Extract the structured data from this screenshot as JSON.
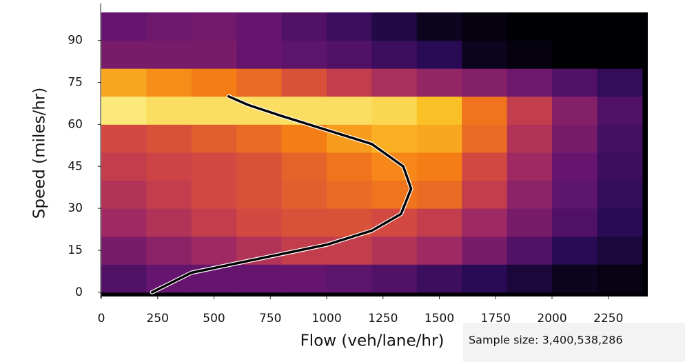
{
  "chart_data": {
    "type": "heatmap",
    "xlabel": "Flow (veh/lane/hr)",
    "ylabel": "Speed (miles/hr)",
    "annotation": "Sample size: 3,400,538,286",
    "xlim": [
      0,
      2425
    ],
    "ylim": [
      -1.5,
      100
    ],
    "xticks": [
      0,
      250,
      500,
      750,
      1000,
      1250,
      1500,
      1750,
      2000,
      2250
    ],
    "yticks": [
      0,
      15,
      30,
      45,
      60,
      75,
      90
    ],
    "xbins": [
      0,
      200,
      400,
      600,
      800,
      1000,
      1200,
      1400,
      1600,
      1800,
      2000,
      2200,
      2400
    ],
    "ybins": [
      0,
      10,
      20,
      30,
      40,
      50,
      60,
      70,
      80,
      90,
      100
    ],
    "z": [
      [
        0.25,
        0.3,
        0.3,
        0.3,
        0.3,
        0.28,
        0.25,
        0.2,
        0.15,
        0.1,
        0.05,
        0.03
      ],
      [
        0.35,
        0.4,
        0.45,
        0.5,
        0.55,
        0.55,
        0.5,
        0.45,
        0.35,
        0.25,
        0.15,
        0.1
      ],
      [
        0.45,
        0.5,
        0.55,
        0.6,
        0.62,
        0.62,
        0.6,
        0.55,
        0.45,
        0.35,
        0.25,
        0.15
      ],
      [
        0.5,
        0.55,
        0.6,
        0.62,
        0.65,
        0.68,
        0.7,
        0.68,
        0.55,
        0.4,
        0.28,
        0.18
      ],
      [
        0.55,
        0.58,
        0.6,
        0.62,
        0.66,
        0.7,
        0.74,
        0.72,
        0.6,
        0.45,
        0.3,
        0.2
      ],
      [
        0.6,
        0.62,
        0.65,
        0.68,
        0.72,
        0.78,
        0.82,
        0.8,
        0.68,
        0.5,
        0.35,
        0.22
      ],
      [
        0.95,
        0.92,
        0.92,
        0.92,
        0.92,
        0.92,
        0.9,
        0.85,
        0.7,
        0.55,
        0.38,
        0.25
      ],
      [
        0.8,
        0.75,
        0.72,
        0.68,
        0.62,
        0.55,
        0.48,
        0.42,
        0.38,
        0.32,
        0.25,
        0.18
      ],
      [
        0.35,
        0.35,
        0.35,
        0.3,
        0.28,
        0.25,
        0.2,
        0.15,
        0.05,
        0.02,
        0.0,
        0.0
      ],
      [
        0.3,
        0.32,
        0.33,
        0.3,
        0.25,
        0.2,
        0.12,
        0.05,
        0.02,
        0.0,
        0.0,
        0.0
      ]
    ],
    "curve": {
      "color": "#000000",
      "x": [
        225,
        400,
        700,
        1000,
        1200,
        1330,
        1375,
        1340,
        1200,
        1000,
        800,
        650,
        565
      ],
      "y": [
        0,
        7,
        12,
        17,
        22,
        28,
        37,
        45,
        53,
        58,
        63,
        67,
        70
      ]
    }
  }
}
